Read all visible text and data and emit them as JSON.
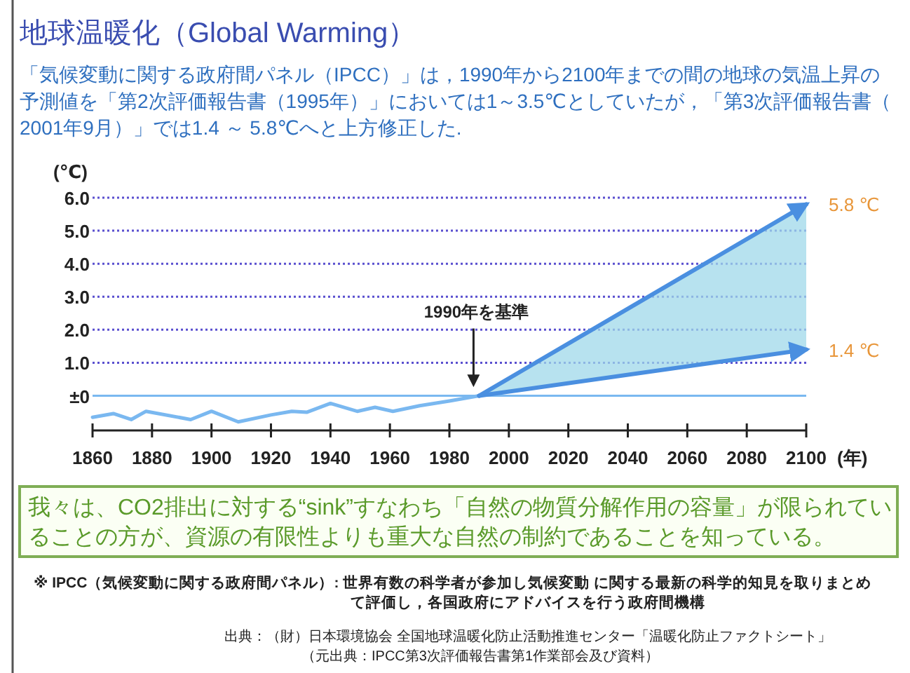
{
  "chart_data": {
    "type": "line",
    "title": "地球温暖化（Global Warming）",
    "subtitle": "「気候変動に関する政府間パネル（IPCC）」は，1990年から2100年までの間の地球の気温上昇の予測値を「第2次評価報告書（1995年）」においては1～3.5℃としていたが，「第3次評価報告書（2001年9月）」では1.4 ～ 5.8℃へと上方修正した.",
    "ylabel": "(℃)",
    "xlabel": "(年)",
    "xlim": [
      1860,
      2100
    ],
    "xticks": [
      1860,
      1880,
      1900,
      1920,
      1940,
      1960,
      1980,
      2000,
      2020,
      2040,
      2060,
      2080,
      2100
    ],
    "ylim": [
      -1.05,
      6.0
    ],
    "yticks": [
      {
        "value": 0,
        "label": "±0"
      },
      {
        "value": 1,
        "label": "1.0"
      },
      {
        "value": 2,
        "label": "2.0"
      },
      {
        "value": 3,
        "label": "3.0"
      },
      {
        "value": 4,
        "label": "4.0"
      },
      {
        "value": 5,
        "label": "5.0"
      },
      {
        "value": 6,
        "label": "6.0"
      }
    ],
    "grid": "y",
    "marker": "none",
    "line_style": "solid",
    "ref_lines": [
      {
        "axis": "y",
        "value": 0,
        "color": "#7ab8f0"
      }
    ],
    "series": [
      {
        "color": "#7ab8f0",
        "x": [
          1860,
          1867,
          1873,
          1878,
          1893,
          1900,
          1909,
          1920,
          1927,
          1932,
          1940,
          1949,
          1955,
          1961,
          1970,
          1980,
          1990
        ],
        "values": [
          -0.65,
          -0.54,
          -0.72,
          -0.47,
          -0.72,
          -0.47,
          -0.79,
          -0.58,
          -0.47,
          -0.5,
          -0.23,
          -0.47,
          -0.35,
          -0.47,
          -0.3,
          -0.16,
          0
        ]
      },
      {
        "color": "#4a8fe0",
        "x": [
          1990,
          2100
        ],
        "values": [
          0,
          5.8
        ],
        "lower": [
          0,
          1.4
        ],
        "upper": [
          0,
          5.8
        ],
        "value_labels": [
          null,
          "5.8 ℃"
        ]
      },
      {
        "color": "#4a8fe0",
        "x": [
          1990,
          2100
        ],
        "values": [
          0,
          1.4
        ],
        "value_labels": [
          null,
          "1.4 ℃"
        ]
      }
    ],
    "annotations": [
      {
        "text": "1990年を基準",
        "x": 1990,
        "y": 0
      },
      "我々は、CO2排出に対する“sink”すなわち「自然の物質分解作用の容量」が限られていることの方が、資源の有限性よりも重大な自然の制約であることを知っている。",
      "※ IPCC（気候変動に関する政府間パネル）: 世界有数の科学者が参加し気候変動 に関する最新の科学的知見を取りまとめて評価し，各国政府にアドバイスを行う政府間機構",
      "出典：（財）日本環境協会 全国地球温暖化防止活動推進センター「温暖化防止ファクトシート」",
      "（元出典：IPCC第3次評価報告書第1作業部会及び資料）"
    ]
  }
}
